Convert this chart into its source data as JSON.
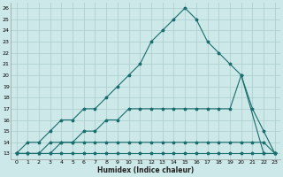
{
  "xlabel": "Humidex (Indice chaleur)",
  "background_color": "#cce8e8",
  "grid_color": "#aacccc",
  "line_color": "#1a6e6e",
  "xlim": [
    -0.5,
    23.5
  ],
  "ylim": [
    12.5,
    26.5
  ],
  "xticks": [
    0,
    1,
    2,
    3,
    4,
    5,
    6,
    7,
    8,
    9,
    10,
    11,
    12,
    13,
    14,
    15,
    16,
    17,
    18,
    19,
    20,
    21,
    22,
    23
  ],
  "yticks": [
    13,
    14,
    15,
    16,
    17,
    18,
    19,
    20,
    21,
    22,
    23,
    24,
    25,
    26
  ],
  "series": [
    {
      "x": [
        0,
        1,
        2,
        3,
        4,
        5,
        6,
        7,
        8,
        9,
        10,
        11,
        12,
        13,
        14,
        15,
        16,
        17,
        18,
        19,
        20,
        22,
        23
      ],
      "y": [
        13,
        14,
        14,
        15,
        16,
        16,
        17,
        17,
        18,
        19,
        20,
        21,
        23,
        24,
        25,
        26,
        25,
        23,
        22,
        21,
        20,
        13,
        13
      ]
    },
    {
      "x": [
        0,
        1,
        2,
        3,
        4,
        5,
        6,
        7,
        8,
        9,
        10,
        11,
        12,
        13,
        14,
        15,
        16,
        17,
        18,
        19,
        20,
        21,
        22,
        23
      ],
      "y": [
        13,
        13,
        13,
        14,
        14,
        14,
        15,
        15,
        16,
        16,
        17,
        17,
        17,
        17,
        17,
        17,
        17,
        17,
        17,
        17,
        20,
        17,
        15,
        13
      ]
    },
    {
      "x": [
        0,
        1,
        2,
        3,
        4,
        5,
        6,
        7,
        8,
        9,
        10,
        11,
        12,
        13,
        14,
        15,
        16,
        17,
        18,
        19,
        20,
        21,
        22,
        23
      ],
      "y": [
        13,
        13,
        13,
        13,
        14,
        14,
        14,
        14,
        14,
        14,
        14,
        14,
        14,
        14,
        14,
        14,
        14,
        14,
        14,
        14,
        14,
        14,
        14,
        13
      ]
    },
    {
      "x": [
        0,
        1,
        2,
        3,
        4,
        5,
        6,
        7,
        8,
        9,
        10,
        11,
        12,
        13,
        14,
        15,
        16,
        17,
        18,
        19,
        20,
        21,
        22,
        23
      ],
      "y": [
        13,
        13,
        13,
        13,
        13,
        13,
        13,
        13,
        13,
        13,
        13,
        13,
        13,
        13,
        13,
        13,
        13,
        13,
        13,
        13,
        13,
        13,
        13,
        13
      ]
    }
  ]
}
